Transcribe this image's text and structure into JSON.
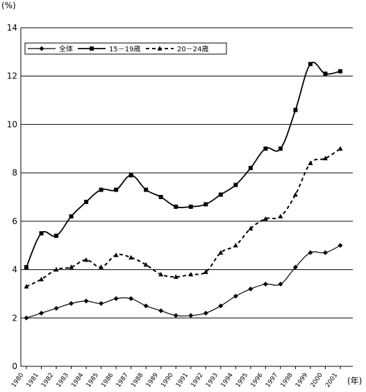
{
  "chart_data": {
    "type": "line",
    "y_unit": "(%)",
    "x_unit": "(年)",
    "ylim": [
      0,
      14
    ],
    "yticks": [
      0,
      2,
      4,
      6,
      8,
      10,
      12,
      14
    ],
    "grid": "horizontal",
    "legend_position": "top-left",
    "x": [
      "1980",
      "1981",
      "1982",
      "1983",
      "1984",
      "1985",
      "1986",
      "1987",
      "1988",
      "1989",
      "1990",
      "1991",
      "1992",
      "1993",
      "1994",
      "1995",
      "1996",
      "1997",
      "1998",
      "1999",
      "2000",
      "2001"
    ],
    "series": [
      {
        "name": "全体",
        "style": "solid-thin",
        "marker": "diamond",
        "values": [
          2.0,
          2.2,
          2.4,
          2.6,
          2.7,
          2.6,
          2.8,
          2.8,
          2.5,
          2.3,
          2.1,
          2.1,
          2.2,
          2.5,
          2.9,
          3.2,
          3.4,
          3.4,
          4.1,
          4.7,
          4.7,
          5.0
        ]
      },
      {
        "name": "15－19歳",
        "style": "solid-thick",
        "marker": "square",
        "values": [
          4.1,
          5.5,
          5.4,
          6.2,
          6.8,
          7.3,
          7.3,
          7.9,
          7.3,
          7.0,
          6.6,
          6.6,
          6.7,
          7.1,
          7.5,
          8.2,
          9.0,
          9.0,
          10.6,
          12.5,
          12.1,
          12.2
        ]
      },
      {
        "name": "20－24歳",
        "style": "dashed",
        "marker": "triangle",
        "values": [
          3.3,
          3.6,
          4.0,
          4.1,
          4.4,
          4.1,
          4.6,
          4.5,
          4.2,
          3.8,
          3.7,
          3.8,
          3.9,
          4.7,
          5.0,
          5.7,
          6.1,
          6.2,
          7.1,
          8.4,
          8.6,
          9.0
        ]
      }
    ]
  }
}
